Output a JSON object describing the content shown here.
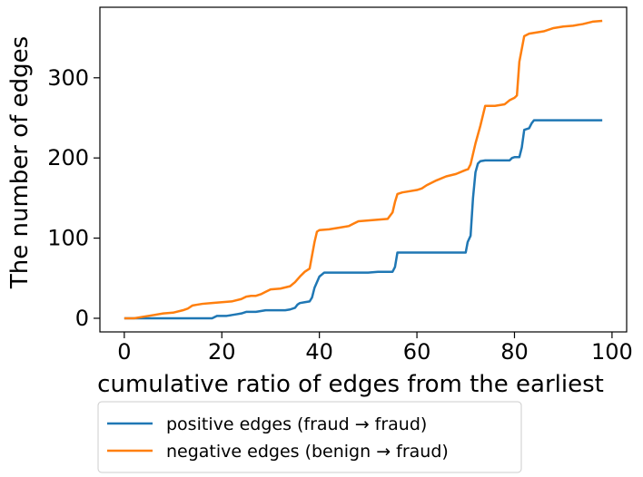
{
  "chart_data": {
    "type": "line",
    "xlabel": "cumulative ratio of edges from the earliest",
    "ylabel": "The number of edges",
    "xlim": [
      -5,
      103
    ],
    "ylim": [
      -17,
      388
    ],
    "x_ticks": [
      0,
      20,
      40,
      60,
      80,
      100
    ],
    "y_ticks": [
      0,
      100,
      200,
      300
    ],
    "grid": false,
    "legend_position": "below the plot",
    "series": [
      {
        "name": "positive  edges (fraud → fraud)",
        "color": "#1f77b4",
        "x": [
          0,
          2,
          4,
          6,
          8,
          10,
          12,
          14,
          16,
          17,
          18,
          19,
          20,
          21,
          22,
          23,
          24,
          25,
          26,
          27,
          28,
          29,
          30,
          31,
          32,
          33,
          34,
          35,
          35.5,
          36,
          37,
          38,
          38.5,
          39,
          40,
          41,
          42,
          44,
          46,
          48,
          50,
          52,
          54,
          55,
          55.5,
          56,
          58,
          60,
          62,
          64,
          66,
          68,
          69,
          70,
          70.4,
          71,
          71.5,
          72,
          72.5,
          73,
          74,
          76,
          78,
          79,
          79.5,
          80,
          81,
          81.5,
          82,
          83,
          83.5,
          84,
          86,
          88,
          90,
          92,
          94,
          96,
          98
        ],
        "y": [
          0,
          0,
          0,
          0,
          0,
          0,
          0,
          0,
          0,
          0,
          0,
          3,
          3,
          3,
          4,
          5,
          6,
          8,
          8,
          8,
          9,
          10,
          10,
          10,
          10,
          10,
          11,
          13,
          17,
          19,
          20,
          21,
          26,
          38,
          52,
          57,
          57,
          57,
          57,
          57,
          57,
          58,
          58,
          58,
          64,
          82,
          82,
          82,
          82,
          82,
          82,
          82,
          82,
          82,
          95,
          103,
          150,
          182,
          193,
          196,
          197,
          197,
          197,
          197,
          200,
          201,
          201,
          213,
          235,
          237,
          243,
          247,
          247,
          247,
          247,
          247,
          247,
          247,
          247
        ]
      },
      {
        "name": "negative edges (benign → fraud)",
        "color": "#ff7f0e",
        "x": [
          0,
          2,
          4,
          6,
          8,
          10,
          12,
          13,
          14,
          15,
          16,
          18,
          20,
          22,
          24,
          25,
          26,
          27,
          28,
          29,
          30,
          32,
          34,
          35,
          36,
          37,
          38,
          39,
          39.5,
          40,
          42,
          44,
          46,
          47,
          48,
          50,
          52,
          54,
          55,
          55.5,
          56,
          57,
          58,
          60,
          61,
          62,
          64,
          66,
          68,
          70,
          70.5,
          71,
          72,
          73,
          74,
          75,
          76,
          78,
          79,
          80,
          80.5,
          81,
          82,
          83,
          84,
          86,
          88,
          90,
          92,
          94,
          96,
          98
        ],
        "y": [
          0,
          0,
          2,
          4,
          6,
          7,
          10,
          12,
          16,
          17,
          18,
          19,
          20,
          21,
          24,
          27,
          28,
          28,
          30,
          33,
          36,
          37,
          40,
          45,
          52,
          58,
          62,
          95,
          108,
          110,
          111,
          113,
          115,
          118,
          121,
          122,
          123,
          124,
          132,
          145,
          155,
          157,
          158,
          160,
          162,
          166,
          172,
          177,
          180,
          185,
          186,
          192,
          218,
          240,
          265,
          265,
          265,
          267,
          272,
          275,
          278,
          320,
          352,
          355,
          356,
          358,
          362,
          364,
          365,
          367,
          370,
          371
        ]
      }
    ]
  }
}
